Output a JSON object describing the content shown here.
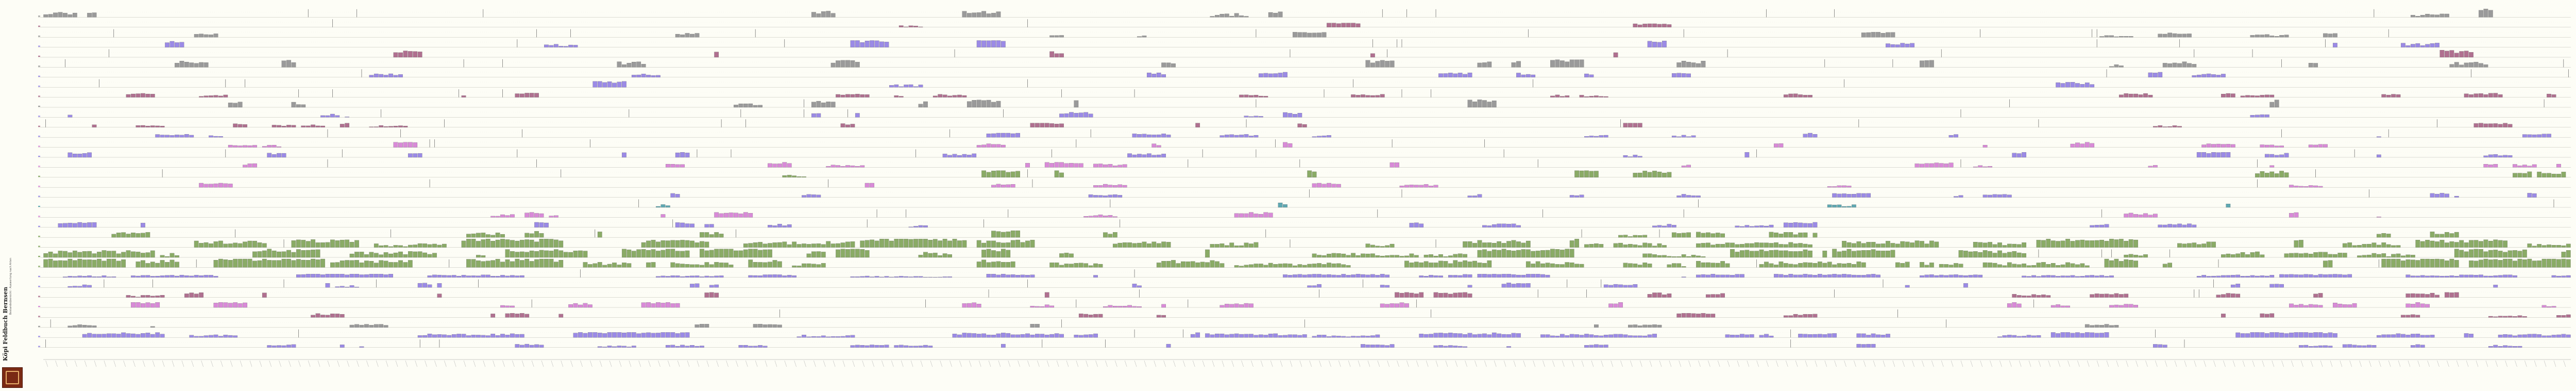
{
  "brand": {
    "title": "Köpi Feldbuch Bernsen",
    "subtitle": "Bestandsübersicht · Auswertung nach Arten"
  },
  "colors": {
    "background": "#fdfdf6",
    "grid": "#d9d9cf",
    "mauve": "#b07090",
    "purple": "#9b8ae6",
    "green": "#8aab66",
    "pink": "#d98ad8",
    "gray": "#9a9a9a",
    "teal": "#5fa8b2",
    "logo": "#7a2a14"
  },
  "chart_data": {
    "type": "bar",
    "description_rows": 34,
    "categories_count": 520,
    "series": [
      {
        "row": 0,
        "color": "gray",
        "density": 0.05,
        "max": 1.0
      },
      {
        "row": 1,
        "color": "mauve",
        "density": 0.02,
        "max": 0.5
      },
      {
        "row": 2,
        "color": "gray",
        "density": 0.04,
        "max": 0.6
      },
      {
        "row": 3,
        "color": "purple",
        "density": 0.04,
        "max": 0.8
      },
      {
        "row": 4,
        "color": "mauve",
        "density": 0.03,
        "max": 0.9
      },
      {
        "row": 5,
        "color": "gray",
        "density": 0.04,
        "max": 0.9
      },
      {
        "row": 6,
        "color": "purple",
        "density": 0.04,
        "max": 0.6
      },
      {
        "row": 7,
        "color": "purple",
        "density": 0.05,
        "max": 0.7
      },
      {
        "row": 8,
        "color": "mauve",
        "density": 0.08,
        "max": 0.5
      },
      {
        "row": 9,
        "color": "gray",
        "density": 0.06,
        "max": 0.9
      },
      {
        "row": 10,
        "color": "purple",
        "density": 0.07,
        "max": 0.6
      },
      {
        "row": 11,
        "color": "mauve",
        "density": 0.1,
        "max": 0.5
      },
      {
        "row": 12,
        "color": "purple",
        "density": 0.1,
        "max": 0.5
      },
      {
        "row": 13,
        "color": "pink",
        "density": 0.08,
        "max": 0.6
      },
      {
        "row": 14,
        "color": "purple",
        "density": 0.09,
        "max": 0.6
      },
      {
        "row": 15,
        "color": "pink",
        "density": 0.08,
        "max": 0.6
      },
      {
        "row": 16,
        "color": "green",
        "density": 0.06,
        "max": 0.8
      },
      {
        "row": 17,
        "color": "pink",
        "density": 0.07,
        "max": 0.5
      },
      {
        "row": 18,
        "color": "purple",
        "density": 0.07,
        "max": 0.5
      },
      {
        "row": 19,
        "color": "teal",
        "density": 0.03,
        "max": 0.7
      },
      {
        "row": 20,
        "color": "pink",
        "density": 0.06,
        "max": 0.6
      },
      {
        "row": 21,
        "color": "purple",
        "density": 0.07,
        "max": 0.6
      },
      {
        "row": 22,
        "color": "green",
        "density": 0.1,
        "max": 0.8
      },
      {
        "row": 23,
        "color": "green",
        "density": 0.32,
        "max": 1.0
      },
      {
        "row": 24,
        "color": "green",
        "density": 0.35,
        "max": 1.0
      },
      {
        "row": 25,
        "color": "green",
        "density": 0.45,
        "max": 1.0
      },
      {
        "row": 26,
        "color": "purple",
        "density": 0.25,
        "max": 0.4
      },
      {
        "row": 27,
        "color": "purple",
        "density": 0.12,
        "max": 0.6
      },
      {
        "row": 28,
        "color": "mauve",
        "density": 0.08,
        "max": 0.6
      },
      {
        "row": 29,
        "color": "pink",
        "density": 0.1,
        "max": 0.6
      },
      {
        "row": 30,
        "color": "mauve",
        "density": 0.08,
        "max": 0.5
      },
      {
        "row": 31,
        "color": "gray",
        "density": 0.05,
        "max": 0.4
      },
      {
        "row": 32,
        "color": "purple",
        "density": 0.3,
        "max": 0.6
      },
      {
        "row": 33,
        "color": "purple",
        "density": 0.1,
        "max": 0.4
      }
    ]
  }
}
